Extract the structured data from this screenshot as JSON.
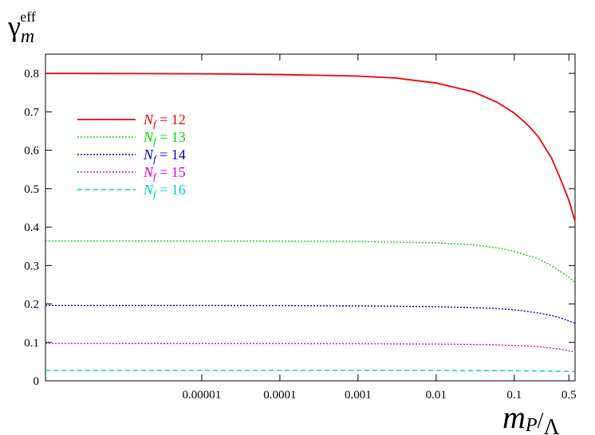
{
  "chart_data": {
    "type": "line",
    "ylabel": {
      "main": "γ",
      "sub": "m",
      "sup": "eff"
    },
    "xlabel": {
      "main": "m",
      "sub": "P",
      "slash": "/",
      "denom": "Λ"
    },
    "xscale": "log",
    "xlim": [
      1e-07,
      0.6
    ],
    "ylim": [
      0,
      0.85
    ],
    "x_ticks": [
      {
        "value": 1e-05,
        "label": "0.00001"
      },
      {
        "value": 0.0001,
        "label": "0.0001"
      },
      {
        "value": 0.001,
        "label": "0.001"
      },
      {
        "value": 0.01,
        "label": "0.01"
      },
      {
        "value": 0.1,
        "label": "0.1"
      },
      {
        "value": 0.5,
        "label": "0.5"
      }
    ],
    "y_ticks": [
      {
        "value": 0,
        "label": "0"
      },
      {
        "value": 0.1,
        "label": "0.1"
      },
      {
        "value": 0.2,
        "label": "0.2"
      },
      {
        "value": 0.3,
        "label": "0.3"
      },
      {
        "value": 0.4,
        "label": "0.4"
      },
      {
        "value": 0.5,
        "label": "0.5"
      },
      {
        "value": 0.6,
        "label": "0.6"
      },
      {
        "value": 0.7,
        "label": "0.7"
      },
      {
        "value": 0.8,
        "label": "0.8"
      }
    ],
    "grid": false,
    "legend_position": "upper-left",
    "series": [
      {
        "name": "N_f = 12",
        "label_main": "N",
        "label_sub": "f",
        "label_rest": " = 12",
        "color": "#ee0000",
        "dash": "solid",
        "points": [
          [
            1e-07,
            0.8
          ],
          [
            1e-06,
            0.7995
          ],
          [
            1e-05,
            0.799
          ],
          [
            0.0001,
            0.797
          ],
          [
            0.001,
            0.793
          ],
          [
            0.003,
            0.788
          ],
          [
            0.01,
            0.775
          ],
          [
            0.03,
            0.752
          ],
          [
            0.06,
            0.725
          ],
          [
            0.1,
            0.697
          ],
          [
            0.15,
            0.665
          ],
          [
            0.2,
            0.637
          ],
          [
            0.3,
            0.58
          ],
          [
            0.4,
            0.52
          ],
          [
            0.5,
            0.47
          ],
          [
            0.6,
            0.415
          ]
        ]
      },
      {
        "name": "N_f = 13",
        "label_main": "N",
        "label_sub": "f",
        "label_rest": " = 13",
        "color": "#00dd00",
        "dash": "dotted",
        "points": [
          [
            1e-07,
            0.364
          ],
          [
            1e-05,
            0.3638
          ],
          [
            0.0001,
            0.3635
          ],
          [
            0.001,
            0.3625
          ],
          [
            0.01,
            0.359
          ],
          [
            0.03,
            0.354
          ],
          [
            0.06,
            0.346
          ],
          [
            0.1,
            0.337
          ],
          [
            0.2,
            0.318
          ],
          [
            0.3,
            0.3
          ],
          [
            0.4,
            0.283
          ],
          [
            0.5,
            0.27
          ],
          [
            0.6,
            0.255
          ]
        ]
      },
      {
        "name": "N_f = 14",
        "label_main": "N",
        "label_sub": "f",
        "label_rest": " = 14",
        "color": "#0000cc",
        "dash": "dotted",
        "points": [
          [
            1e-07,
            0.196
          ],
          [
            1e-05,
            0.196
          ],
          [
            0.0001,
            0.1958
          ],
          [
            0.001,
            0.195
          ],
          [
            0.01,
            0.193
          ],
          [
            0.05,
            0.189
          ],
          [
            0.1,
            0.185
          ],
          [
            0.2,
            0.177
          ],
          [
            0.3,
            0.17
          ],
          [
            0.4,
            0.163
          ],
          [
            0.5,
            0.156
          ],
          [
            0.6,
            0.15
          ]
        ]
      },
      {
        "name": "N_f = 15",
        "label_main": "N",
        "label_sub": "f",
        "label_rest": " = 15",
        "color": "#dd00dd",
        "dash": "dotted",
        "points": [
          [
            1e-07,
            0.097
          ],
          [
            0.0001,
            0.0968
          ],
          [
            0.001,
            0.0965
          ],
          [
            0.01,
            0.0955
          ],
          [
            0.05,
            0.094
          ],
          [
            0.1,
            0.092
          ],
          [
            0.2,
            0.089
          ],
          [
            0.3,
            0.085
          ],
          [
            0.4,
            0.082
          ],
          [
            0.5,
            0.078
          ],
          [
            0.6,
            0.075
          ]
        ]
      },
      {
        "name": "N_f = 16",
        "label_main": "N",
        "label_sub": "f",
        "label_rest": " = 16",
        "color": "#00cccc",
        "dash": "dashed",
        "points": [
          [
            1e-07,
            0.027
          ],
          [
            0.001,
            0.027
          ],
          [
            0.01,
            0.0268
          ],
          [
            0.1,
            0.0262
          ],
          [
            0.3,
            0.0252
          ],
          [
            0.5,
            0.0245
          ],
          [
            0.6,
            0.024
          ]
        ]
      }
    ]
  }
}
